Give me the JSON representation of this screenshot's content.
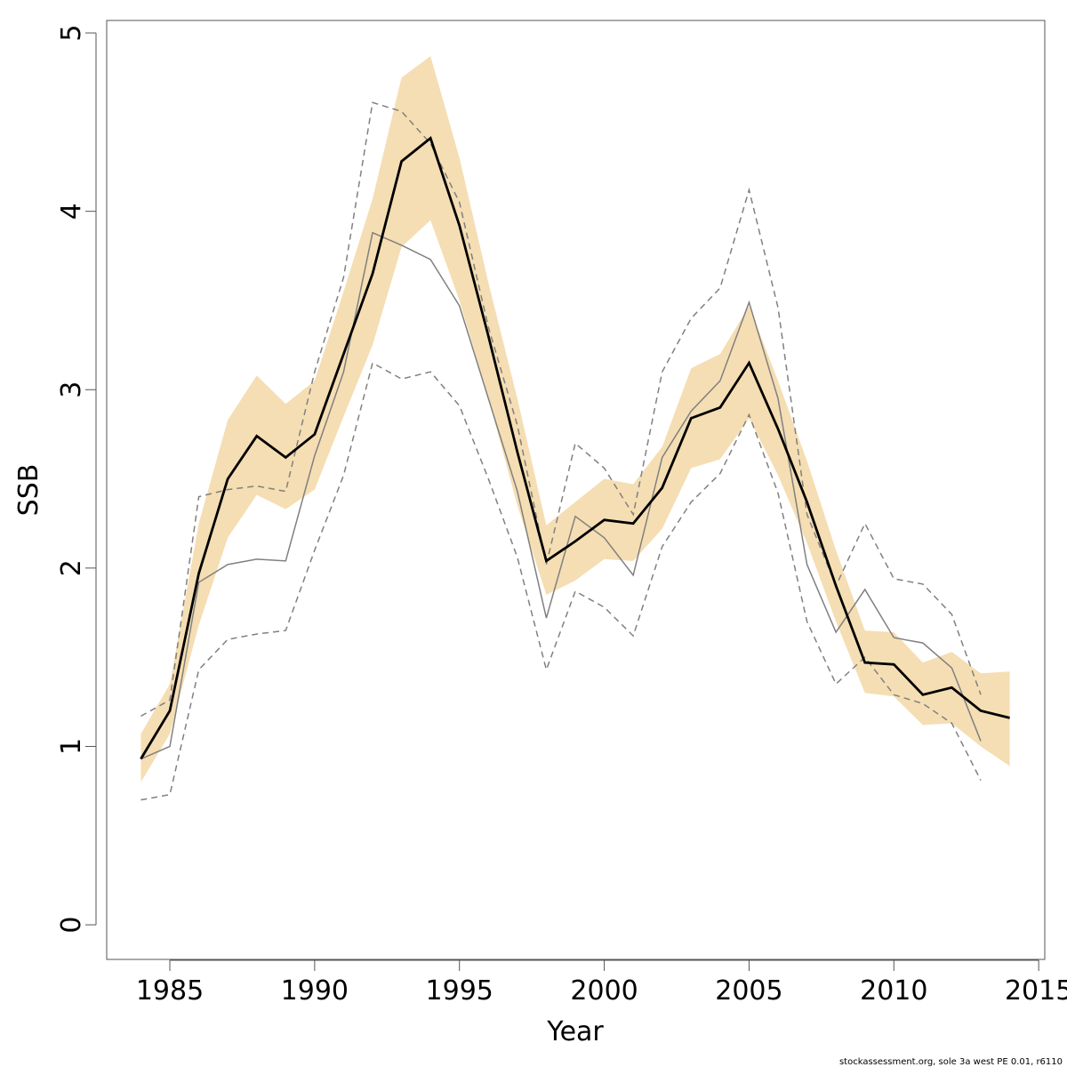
{
  "chart_data": {
    "type": "line",
    "xlabel": "Year",
    "ylabel": "SSB",
    "footnote": "stockassessment.org, sole 3a west PE 0.01, r6110",
    "x": [
      1984,
      1985,
      1986,
      1987,
      1988,
      1989,
      1990,
      1991,
      1992,
      1993,
      1994,
      1995,
      1996,
      1997,
      1998,
      1999,
      2000,
      2001,
      2002,
      2003,
      2004,
      2005,
      2006,
      2007,
      2008,
      2009,
      2010,
      2011,
      2012,
      2013,
      2014
    ],
    "band": {
      "color": "#f5deb3",
      "upper": [
        1.07,
        1.35,
        2.25,
        2.83,
        3.08,
        2.92,
        3.05,
        3.55,
        4.07,
        4.75,
        4.87,
        4.3,
        3.6,
        2.95,
        2.24,
        2.37,
        2.5,
        2.47,
        2.68,
        3.12,
        3.2,
        3.47,
        3.05,
        2.6,
        2.1,
        1.65,
        1.64,
        1.47,
        1.53,
        1.41,
        1.42
      ],
      "lower": [
        0.8,
        1.07,
        1.68,
        2.17,
        2.41,
        2.33,
        2.44,
        2.85,
        3.25,
        3.8,
        3.95,
        3.5,
        2.95,
        2.35,
        1.85,
        1.93,
        2.05,
        2.04,
        2.22,
        2.56,
        2.61,
        2.84,
        2.52,
        2.14,
        1.7,
        1.3,
        1.28,
        1.12,
        1.13,
        1.0,
        0.89
      ]
    },
    "series": [
      {
        "color": "#808080",
        "style": "dashed",
        "values": [
          1.17,
          1.26,
          2.4,
          2.44,
          2.46,
          2.43,
          3.1,
          3.63,
          4.61,
          4.56,
          4.38,
          4.05,
          3.35,
          2.8,
          2.02,
          2.7,
          2.56,
          2.3,
          3.1,
          3.4,
          3.57,
          4.12,
          3.46,
          2.3,
          1.9,
          2.25,
          1.94,
          1.91,
          1.74,
          1.29,
          null
        ]
      },
      {
        "color": "#808080",
        "style": "dashed",
        "values": [
          0.7,
          0.73,
          1.43,
          1.6,
          1.63,
          1.65,
          2.1,
          2.52,
          3.15,
          3.06,
          3.1,
          2.91,
          2.5,
          2.06,
          1.43,
          1.87,
          1.78,
          1.62,
          2.12,
          2.37,
          2.53,
          2.86,
          2.42,
          1.7,
          1.35,
          1.5,
          1.29,
          1.24,
          1.13,
          0.81,
          null
        ]
      },
      {
        "color": "#808080",
        "style": "solid",
        "values": [
          0.93,
          1.0,
          1.92,
          2.02,
          2.05,
          2.04,
          2.63,
          3.1,
          3.88,
          3.81,
          3.73,
          3.47,
          2.95,
          2.43,
          1.72,
          2.29,
          2.17,
          1.96,
          2.62,
          2.88,
          3.05,
          3.49,
          2.95,
          2.02,
          1.64,
          1.88,
          1.61,
          1.58,
          1.44,
          1.03,
          null
        ]
      },
      {
        "color": "#000000",
        "style": "bold",
        "values": [
          0.93,
          1.2,
          1.97,
          2.5,
          2.74,
          2.62,
          2.75,
          3.2,
          3.65,
          4.28,
          4.41,
          3.92,
          3.3,
          2.65,
          2.04,
          2.15,
          2.27,
          2.25,
          2.45,
          2.84,
          2.9,
          3.15,
          2.78,
          2.37,
          1.9,
          1.47,
          1.46,
          1.29,
          1.33,
          1.2,
          1.16
        ]
      }
    ],
    "xlim": [
      1982.82,
      2015.21
    ],
    "ylim": [
      -0.194,
      5.07
    ],
    "xticks": [
      1985,
      1990,
      1995,
      2000,
      2005,
      2010,
      2015
    ],
    "yticks": [
      0,
      1,
      2,
      3,
      4,
      5
    ]
  }
}
